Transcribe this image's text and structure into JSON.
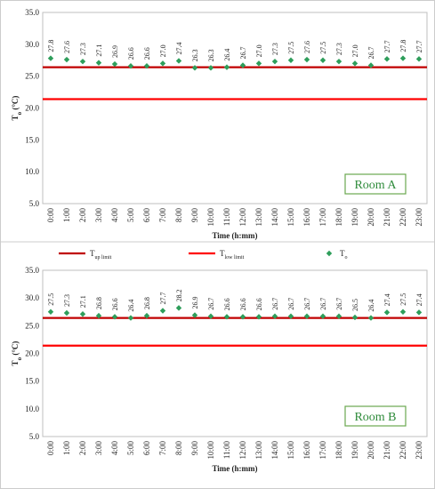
{
  "chart_data": [
    {
      "type": "scatter",
      "room_label": "Room A",
      "ylabel": "To (°C)",
      "xlabel": "Time (h:mm)",
      "ylim": [
        5.0,
        35.0
      ],
      "yticks": [
        "5.0",
        "10.0",
        "15.0",
        "20.0",
        "25.0",
        "30.0",
        "35.0"
      ],
      "categories": [
        "0:00",
        "1:00",
        "2:00",
        "3:00",
        "4:00",
        "5:00",
        "6:00",
        "7:00",
        "8:00",
        "9:00",
        "10:00",
        "11:00",
        "12:00",
        "13:00",
        "14:00",
        "15:00",
        "16:00",
        "17:00",
        "18:00",
        "19:00",
        "20:00",
        "21:00",
        "22:00",
        "23:00"
      ],
      "series": [
        {
          "name": "To",
          "values": [
            27.8,
            27.6,
            27.3,
            27.1,
            26.9,
            26.6,
            26.6,
            27.0,
            27.4,
            26.3,
            26.3,
            26.4,
            26.7,
            27.0,
            27.3,
            27.5,
            27.6,
            27.5,
            27.3,
            27.0,
            26.7,
            27.7,
            27.8,
            27.7
          ]
        }
      ],
      "limits": {
        "up": 26.4,
        "low": 21.4
      },
      "grid": false
    },
    {
      "type": "scatter",
      "room_label": "Room B",
      "ylabel": "To (°C)",
      "xlabel": "Time (h:mm)",
      "ylim": [
        5.0,
        35.0
      ],
      "yticks": [
        "5.0",
        "10.0",
        "15.0",
        "20.0",
        "25.0",
        "30.0",
        "35.0"
      ],
      "categories": [
        "0:00",
        "1:00",
        "2:00",
        "3:00",
        "4:00",
        "5:00",
        "6:00",
        "7:00",
        "8:00",
        "9:00",
        "10:00",
        "11:00",
        "12:00",
        "13:00",
        "14:00",
        "15:00",
        "16:00",
        "17:00",
        "18:00",
        "19:00",
        "20:00",
        "21:00",
        "22:00",
        "23:00"
      ],
      "series": [
        {
          "name": "To",
          "values": [
            27.5,
            27.3,
            27.1,
            26.8,
            26.6,
            26.4,
            26.8,
            27.7,
            28.2,
            26.9,
            26.7,
            26.6,
            26.6,
            26.6,
            26.7,
            26.7,
            26.7,
            26.7,
            26.7,
            26.5,
            26.4,
            27.4,
            27.5,
            27.4
          ]
        }
      ],
      "limits": {
        "up": 26.4,
        "low": 21.4
      },
      "grid": false
    }
  ],
  "legend": {
    "items": [
      {
        "label": "T",
        "sub": "up limit",
        "kind": "line",
        "color": "#c00000"
      },
      {
        "label": "T",
        "sub": "low limit",
        "kind": "line",
        "color": "#ff0000"
      },
      {
        "label": "T",
        "sub": "o",
        "kind": "marker",
        "color": "#2e9e5b"
      }
    ]
  },
  "colors": {
    "up_limit": "#c00000",
    "low_limit": "#ff0000",
    "marker": "#2e9e5b",
    "room_box": "#6aa84f"
  }
}
